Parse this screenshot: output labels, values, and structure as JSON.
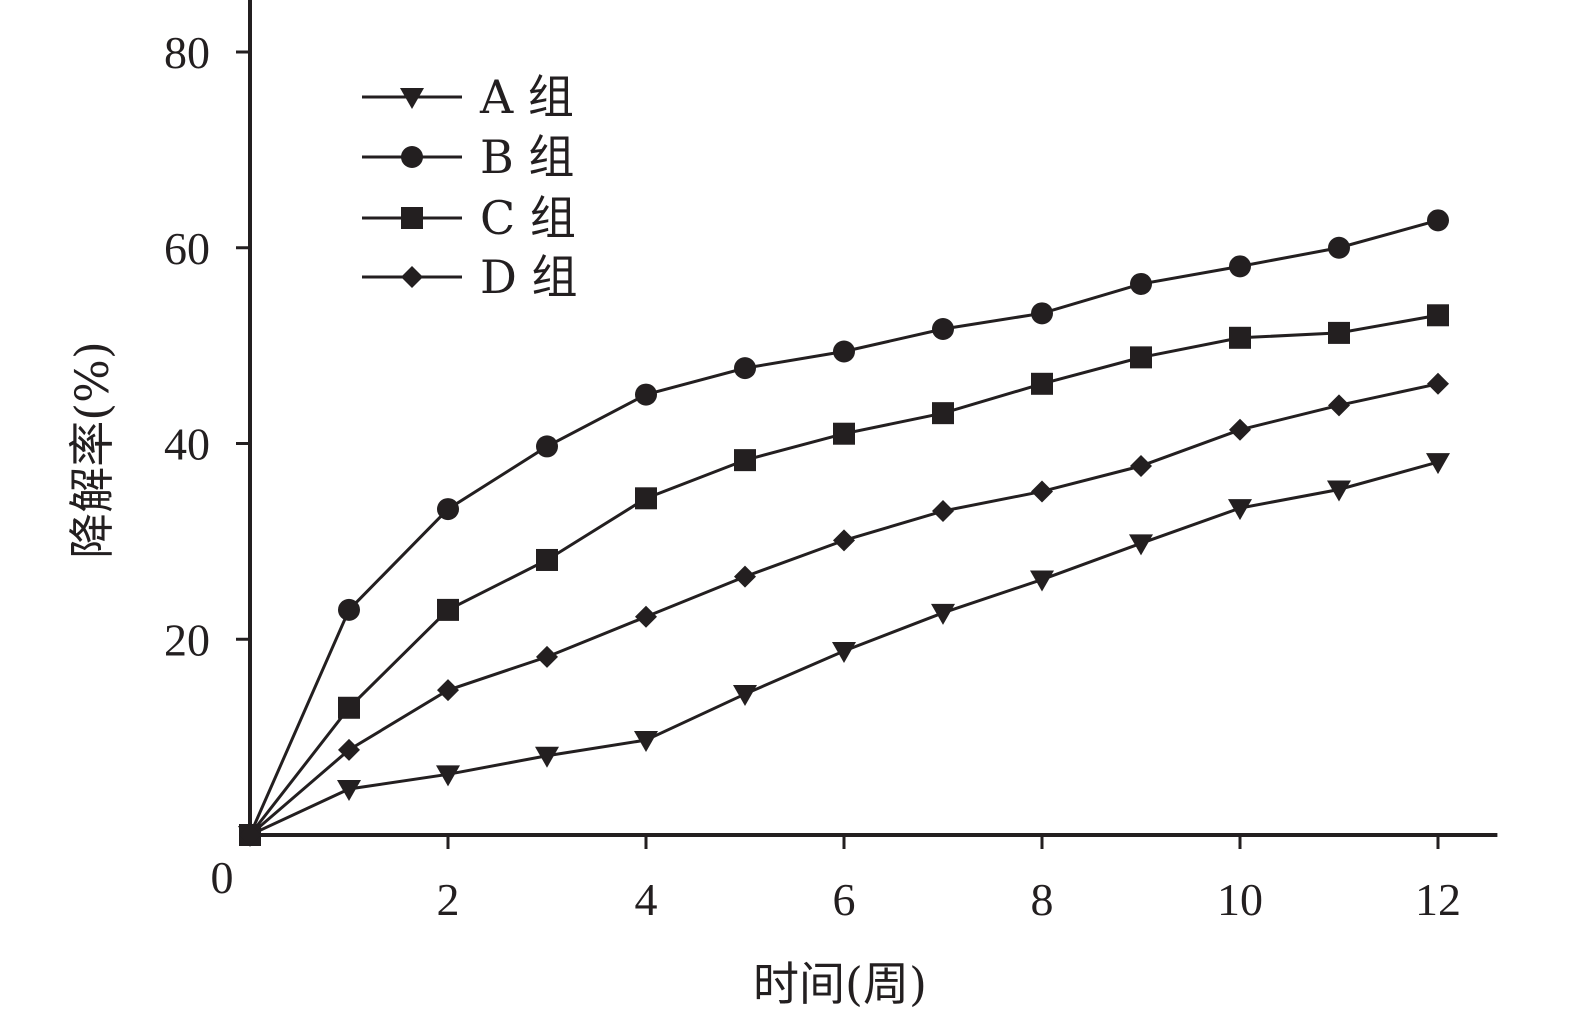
{
  "chart_data": {
    "type": "line",
    "xlabel": "时间(周)",
    "ylabel": "降解率(%)",
    "origin_label": "0",
    "xlim": [
      0,
      12.6
    ],
    "ylim": [
      0,
      86
    ],
    "x_ticks": [
      2,
      4,
      6,
      8,
      10,
      12
    ],
    "x_tick_labels": [
      "2",
      "4",
      "6",
      "8",
      "10",
      "12"
    ],
    "y_ticks": [
      20,
      40,
      60,
      80
    ],
    "y_tick_labels": [
      "20",
      "40",
      "60",
      "80"
    ],
    "x": [
      0,
      1,
      2,
      3,
      4,
      5,
      6,
      7,
      8,
      9,
      10,
      11,
      12
    ],
    "series": [
      {
        "name": "A 组",
        "marker": "triangle-down",
        "values": [
          0,
          4.7,
          6.2,
          8.1,
          9.7,
          14.4,
          18.8,
          22.7,
          26.1,
          29.8,
          33.4,
          35.3,
          38.1
        ]
      },
      {
        "name": "B 组",
        "marker": "circle",
        "values": [
          0,
          23.0,
          33.3,
          39.7,
          45.0,
          47.7,
          49.4,
          51.7,
          53.3,
          56.3,
          58.1,
          60.0,
          62.8
        ]
      },
      {
        "name": "C 组",
        "marker": "square",
        "values": [
          0,
          13.0,
          23.0,
          28.1,
          34.4,
          38.3,
          41.0,
          43.1,
          46.1,
          48.8,
          50.8,
          51.3,
          53.1
        ]
      },
      {
        "name": "D 组",
        "marker": "diamond",
        "values": [
          0,
          8.7,
          14.8,
          18.2,
          22.3,
          26.4,
          30.1,
          33.1,
          35.1,
          37.7,
          41.4,
          43.9,
          46.1
        ]
      }
    ],
    "legend_position": "top-left",
    "grid": false,
    "colors": {
      "ink": "#231f20",
      "background": "#ffffff"
    }
  }
}
